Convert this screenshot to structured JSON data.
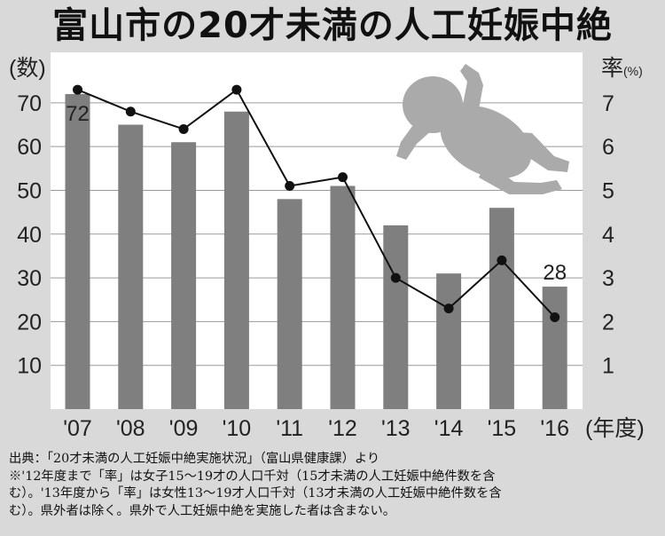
{
  "title": "富山市の20才未満の人工妊娠中絶",
  "chart_data": {
    "type": "bar",
    "categories": [
      "'07",
      "'08",
      "'09",
      "'10",
      "'11",
      "'12",
      "'13",
      "'14",
      "'15",
      "'16"
    ],
    "series": [
      {
        "values": [
          72,
          65,
          61,
          68,
          48,
          51,
          42,
          31,
          46,
          28
        ],
        "axis": "left",
        "type": "bar",
        "color": "#7f7f7f"
      },
      {
        "values": [
          7.3,
          6.8,
          6.4,
          7.3,
          5.1,
          5.3,
          3.0,
          2.3,
          3.4,
          2.1
        ],
        "axis": "right",
        "type": "line",
        "color": "#111111"
      }
    ],
    "data_labels": [
      {
        "index": 0,
        "text": "72"
      },
      {
        "index": 9,
        "text": "28"
      }
    ],
    "y_left": {
      "unit": "(数)",
      "ticks": [
        "10",
        "20",
        "30",
        "40",
        "50",
        "60",
        "70"
      ],
      "ylim": [
        0,
        80
      ]
    },
    "y_right": {
      "unit": "率",
      "unit_suffix": "(%)",
      "ticks": [
        "1",
        "2",
        "3",
        "4",
        "5",
        "6",
        "7"
      ],
      "ylim": [
        0,
        8
      ]
    },
    "x_unit": "(年度)",
    "grid": true
  },
  "source": {
    "line1": "出典：「20才未満の人工妊娠中絶実施状況」（富山県健康課）より",
    "line2": "※'12年度まで「率」は女子15～19才の人口千対（15才未満の人工妊娠中絶件数を含",
    "line3": "む）。'13年度から「率」は女性13～19才人口千対（13才未満の人工妊娠中絶件数を含",
    "line4": "む）。県外者は除く。県外で人工妊娠中絶を実施した者は含まない。"
  },
  "illustration": {
    "icon": "baby-silhouette",
    "color": "#aaaaaa"
  }
}
